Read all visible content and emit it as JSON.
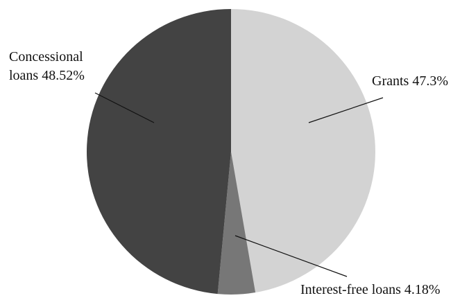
{
  "chart_data": {
    "type": "pie",
    "start_angle_deg": 0,
    "direction": "clockwise",
    "slices": [
      {
        "name": "Grants",
        "value": 47.3,
        "label_text": "Grants 47.3%",
        "color": "#d3d3d3"
      },
      {
        "name": "Interest-free loans",
        "value": 4.18,
        "label_text": "Interest-free loans 4.18%",
        "color": "#777777"
      },
      {
        "name": "Concessional loans",
        "value": 48.52,
        "label_lines": [
          "Concessional",
          "loans 48.52%"
        ],
        "color": "#434343"
      }
    ]
  }
}
